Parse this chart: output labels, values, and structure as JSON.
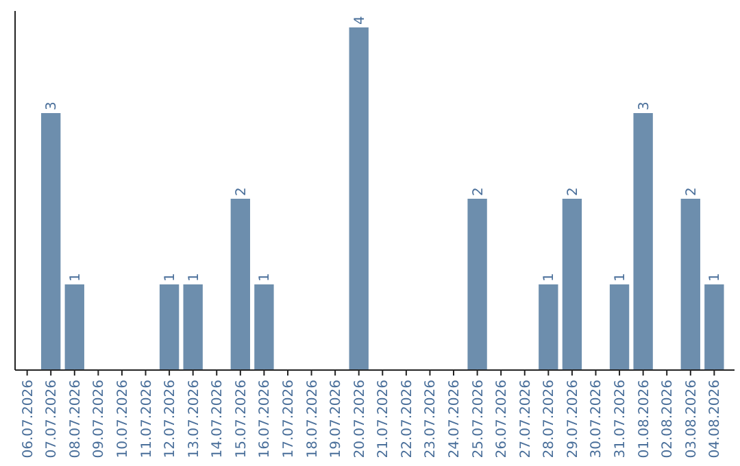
{
  "chart_data": {
    "type": "bar",
    "categories": [
      "06.07.2026",
      "07.07.2026",
      "08.07.2026",
      "09.07.2026",
      "10.07.2026",
      "11.07.2026",
      "12.07.2026",
      "13.07.2026",
      "14.07.2026",
      "15.07.2026",
      "16.07.2026",
      "17.07.2026",
      "18.07.2026",
      "19.07.2026",
      "20.07.2026",
      "21.07.2026",
      "22.07.2026",
      "23.07.2026",
      "24.07.2026",
      "25.07.2026",
      "26.07.2026",
      "27.07.2026",
      "28.07.2026",
      "29.07.2026",
      "30.07.2026",
      "31.07.2026",
      "01.08.2026",
      "02.08.2026",
      "03.08.2026",
      "04.08.2026"
    ],
    "values": [
      0,
      3,
      1,
      0,
      0,
      0,
      1,
      1,
      0,
      2,
      1,
      0,
      0,
      0,
      4,
      0,
      0,
      0,
      0,
      2,
      0,
      0,
      1,
      2,
      0,
      1,
      3,
      0,
      2,
      1
    ],
    "value_labels": [
      null,
      "3",
      "1",
      null,
      null,
      null,
      "1",
      "1",
      null,
      "2",
      "1",
      null,
      null,
      null,
      "4",
      null,
      null,
      null,
      null,
      "2",
      null,
      null,
      "1",
      "2",
      null,
      "1",
      "3",
      null,
      "2",
      "1"
    ],
    "color": "#6d8ead",
    "grid": false
  }
}
